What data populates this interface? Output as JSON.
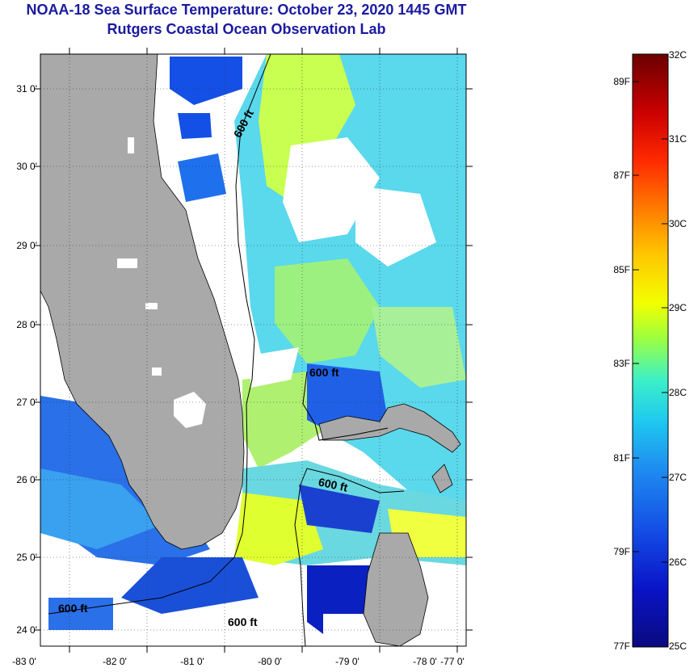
{
  "title": "NOAA-18 Sea Surface Temperature:  October 23, 2020 1445 GMT",
  "subtitle": "Rutgers Coastal Ocean Observation Lab",
  "lat_labels": [
    "31 0'",
    "30 0'",
    "29 0'",
    "28 0'",
    "27 0'",
    "26 0'",
    "25 0'",
    "24 0'"
  ],
  "lon_labels": [
    "-83 0'",
    "-82 0'",
    "-81 0'",
    "-80 0'",
    "-79 0'",
    "-78 0'",
    "-77 0'"
  ],
  "contour_label": "600 ft",
  "colorbar": {
    "f_labels": [
      "89F",
      "87F",
      "85F",
      "83F",
      "81F",
      "79F",
      "77F"
    ],
    "c_labels": [
      "32C",
      "31C",
      "30C",
      "29C",
      "28C",
      "27C",
      "26C",
      "25C"
    ],
    "colors": [
      "#6b0000",
      "#cc0000",
      "#ff2a00",
      "#ff7a00",
      "#ffc800",
      "#f2ff00",
      "#9cff40",
      "#3cf0c8",
      "#1ec8f0",
      "#1e8cf0",
      "#1450e6",
      "#0a14c8",
      "#0a0a80"
    ]
  },
  "map": {
    "land_color": "#a9a9a9",
    "cloud_color": "#ffffff",
    "grid": true
  }
}
